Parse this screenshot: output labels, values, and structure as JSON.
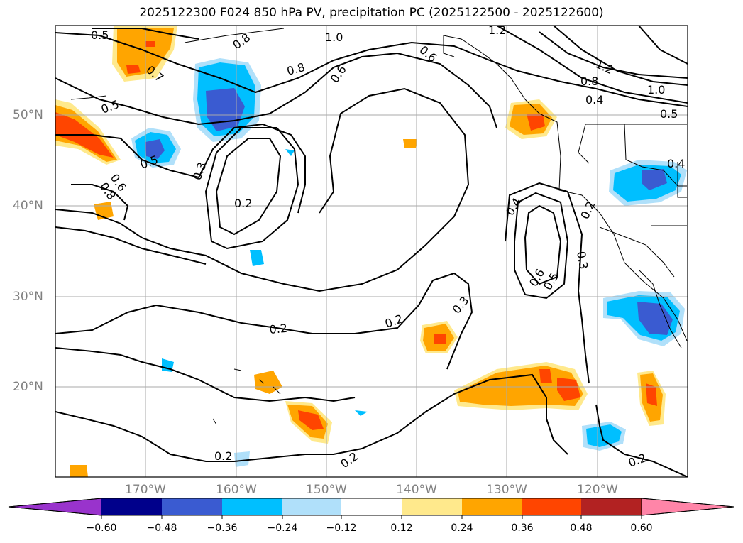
{
  "title": "2025122300 F024 850 hPa PV, precipitation PC (2025122500 - 2025122600)",
  "latitude_labels": [
    "50°N",
    "40°N",
    "30°N",
    "20°N"
  ],
  "longitude_labels": [
    "170°W",
    "160°W",
    "150°W",
    "140°W",
    "130°W",
    "120°W"
  ],
  "pv_contour_labels": [
    "0.5",
    "0.8",
    "1.0",
    "1.2",
    "0.7",
    "0.8",
    "0.6",
    "0.6",
    "1.2",
    "0.8",
    "1.0",
    "0.4",
    "0.5",
    "0.5",
    "0.5",
    "0.6",
    "0.8",
    "0.3",
    "0.2",
    "0.4",
    "0.2",
    "0.3",
    "0.6",
    "0.5",
    "0.2",
    "0.2",
    "0.3",
    "0.2",
    "0.2",
    "0.2",
    "0.4"
  ],
  "colorbar": {
    "ticks": [
      "−0.60",
      "−0.48",
      "−0.36",
      "−0.24",
      "−0.12",
      "0.12",
      "0.24",
      "0.36",
      "0.48",
      "0.60"
    ],
    "colors": [
      "#9933cc",
      "#00008b",
      "#3a5bd1",
      "#00bfff",
      "#b0e0fa",
      "#ffffff",
      "#ffe98c",
      "#ffa500",
      "#ff4500",
      "#b22222",
      "#ff85a8"
    ]
  }
}
